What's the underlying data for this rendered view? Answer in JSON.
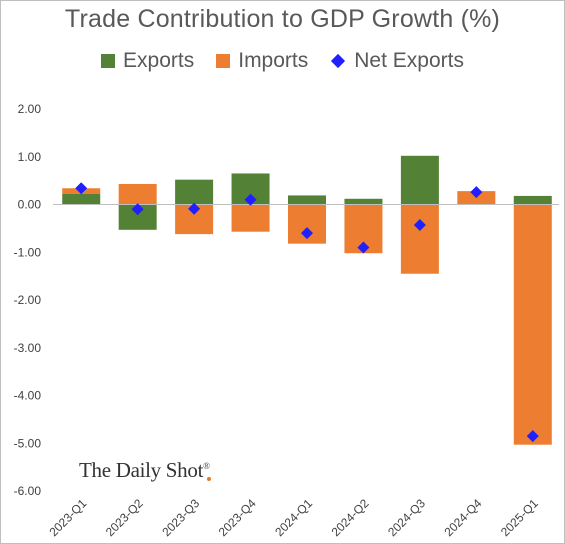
{
  "title": "Trade Contribution to GDP Growth (%)",
  "legend": {
    "exports": "Exports",
    "imports": "Imports",
    "net": "Net Exports"
  },
  "colors": {
    "exports": "#538135",
    "imports": "#ed7d31",
    "net": "#1f1fff"
  },
  "watermark": {
    "text": "The Daily Shot",
    "mark": "®"
  },
  "chart_data": {
    "type": "bar",
    "stacked": true,
    "categories": [
      "2023-Q1",
      "2023-Q2",
      "2023-Q3",
      "2023-Q4",
      "2024-Q1",
      "2024-Q2",
      "2024-Q3",
      "2024-Q4",
      "2025-Q1"
    ],
    "series": [
      {
        "name": "Exports",
        "type": "bar",
        "values": [
          0.22,
          -0.53,
          0.52,
          0.65,
          0.19,
          0.12,
          1.02,
          0.0,
          0.18
        ]
      },
      {
        "name": "Imports",
        "type": "bar",
        "values": [
          0.12,
          0.43,
          -0.62,
          -0.57,
          -0.82,
          -1.02,
          -1.45,
          0.28,
          -5.03
        ]
      },
      {
        "name": "Net Exports",
        "type": "scatter",
        "marker": "diamond",
        "values": [
          0.34,
          -0.1,
          -0.09,
          0.1,
          -0.6,
          -0.9,
          -0.43,
          0.26,
          -4.85
        ]
      }
    ],
    "ylim": [
      -6,
      2
    ],
    "yticks": [
      "2.00",
      "1.00",
      "0.00",
      "-1.00",
      "-2.00",
      "-3.00",
      "-4.00",
      "-5.00",
      "-6.00"
    ],
    "ytick_values": [
      2,
      1,
      0,
      -1,
      -2,
      -3,
      -4,
      -5,
      -6
    ],
    "grid": false,
    "legend_position": "top"
  }
}
